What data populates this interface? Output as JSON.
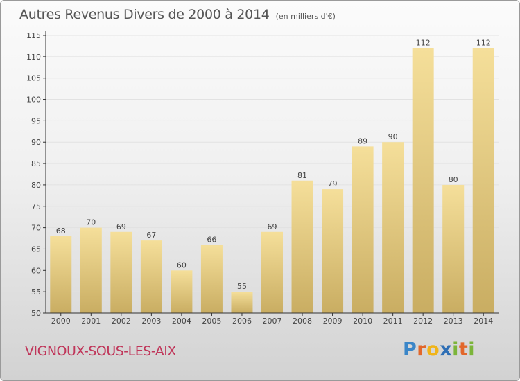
{
  "title": "Autres Revenus Divers de 2000 à 2014",
  "unit": "(en milliers d'€)",
  "place": "VIGNOUX-SOUS-LES-AIX",
  "logo": {
    "text": "Proxiti"
  },
  "colors": {
    "bar_light": "#f5df9a",
    "bar_dark": "#c9ad62",
    "axis": "#333333",
    "grid": "#e2e2e2",
    "label": "#444444",
    "place": "#c0365a"
  },
  "chart_data": {
    "type": "bar",
    "title": "Autres Revenus Divers de 2000 à 2014",
    "ylabel": "",
    "xlabel": "",
    "ylim": [
      50,
      115
    ],
    "yticks": [
      50,
      55,
      60,
      65,
      70,
      75,
      80,
      85,
      90,
      95,
      100,
      105,
      110,
      115
    ],
    "categories": [
      "2000",
      "2001",
      "2002",
      "2003",
      "2004",
      "2005",
      "2006",
      "2007",
      "2008",
      "2009",
      "2010",
      "2011",
      "2012",
      "2013",
      "2014"
    ],
    "values": [
      68,
      70,
      69,
      67,
      60,
      66,
      55,
      69,
      81,
      79,
      89,
      90,
      112,
      80,
      112
    ],
    "grid": true,
    "data_labels": true
  }
}
